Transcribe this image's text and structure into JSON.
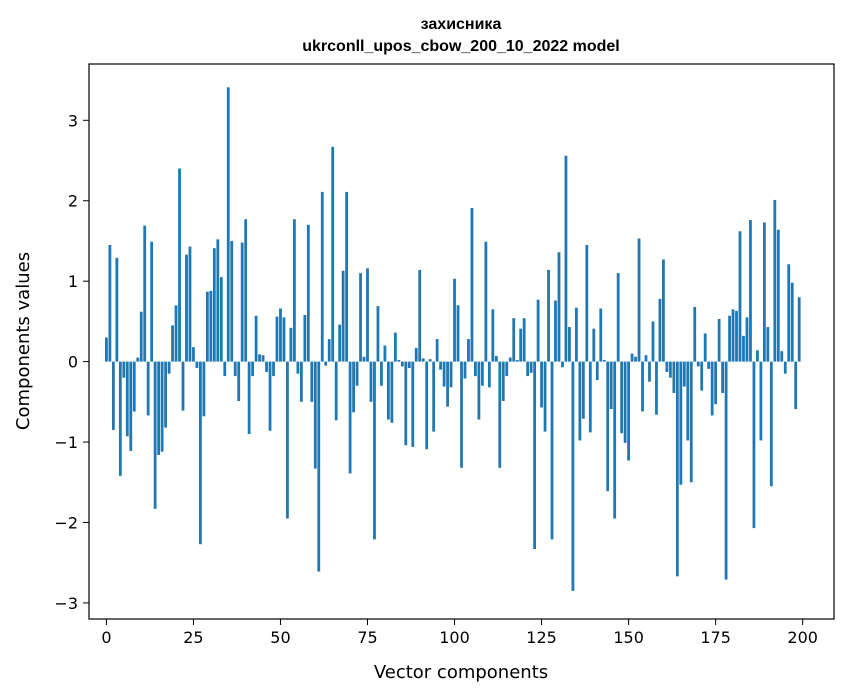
{
  "chart_data": {
    "type": "bar",
    "title_line1": "захисника",
    "title_line2": "ukrconll_upos_cbow_200_10_2022 model",
    "xlabel": "Vector components",
    "ylabel": "Components values",
    "xlim": [
      -5,
      209
    ],
    "ylim": [
      -3.2,
      3.7
    ],
    "xticks": [
      0,
      25,
      50,
      75,
      100,
      125,
      150,
      175,
      200
    ],
    "yticks": [
      -3,
      -2,
      -1,
      0,
      1,
      2,
      3
    ],
    "ytick_labels": [
      "−3",
      "−2",
      "−1",
      "0",
      "1",
      "2",
      "3"
    ],
    "bar_color": "#1f77b4",
    "grid": false,
    "x": [
      0,
      1,
      2,
      3,
      4,
      5,
      6,
      7,
      8,
      9,
      10,
      11,
      12,
      13,
      14,
      15,
      16,
      17,
      18,
      19,
      20,
      21,
      22,
      23,
      24,
      25,
      26,
      27,
      28,
      29,
      30,
      31,
      32,
      33,
      34,
      35,
      36,
      37,
      38,
      39,
      40,
      41,
      42,
      43,
      44,
      45,
      46,
      47,
      48,
      49,
      50,
      51,
      52,
      53,
      54,
      55,
      56,
      57,
      58,
      59,
      60,
      61,
      62,
      63,
      64,
      65,
      66,
      67,
      68,
      69,
      70,
      71,
      72,
      73,
      74,
      75,
      76,
      77,
      78,
      79,
      80,
      81,
      82,
      83,
      84,
      85,
      86,
      87,
      88,
      89,
      90,
      91,
      92,
      93,
      94,
      95,
      96,
      97,
      98,
      99,
      100,
      101,
      102,
      103,
      104,
      105,
      106,
      107,
      108,
      109,
      110,
      111,
      112,
      113,
      114,
      115,
      116,
      117,
      118,
      119,
      120,
      121,
      122,
      123,
      124,
      125,
      126,
      127,
      128,
      129,
      130,
      131,
      132,
      133,
      134,
      135,
      136,
      137,
      138,
      139,
      140,
      141,
      142,
      143,
      144,
      145,
      146,
      147,
      148,
      149,
      150,
      151,
      152,
      153,
      154,
      155,
      156,
      157,
      158,
      159,
      160,
      161,
      162,
      163,
      164,
      165,
      166,
      167,
      168,
      169,
      170,
      171,
      172,
      173,
      174,
      175,
      176,
      177,
      178,
      179,
      180,
      181,
      182,
      183,
      184,
      185,
      186,
      187,
      188,
      189,
      190,
      191,
      192,
      193,
      194,
      195,
      196,
      197,
      198,
      199
    ],
    "values": [
      0.3,
      1.45,
      -0.85,
      1.29,
      -1.42,
      -0.2,
      -0.93,
      -1.11,
      -0.62,
      0.05,
      0.62,
      1.69,
      -0.67,
      1.49,
      -1.83,
      -1.16,
      -1.12,
      -0.82,
      -0.15,
      0.45,
      0.7,
      2.4,
      -0.61,
      1.33,
      1.43,
      0.18,
      -0.08,
      -2.27,
      -0.68,
      0.87,
      0.88,
      1.41,
      1.52,
      1.05,
      -0.18,
      3.41,
      1.5,
      -0.18,
      -0.49,
      1.48,
      1.77,
      -0.9,
      -0.18,
      0.57,
      0.09,
      0.08,
      -0.13,
      -0.86,
      -0.18,
      0.56,
      0.66,
      0.55,
      -1.95,
      0.42,
      1.77,
      -0.15,
      -0.5,
      0.58,
      1.7,
      -0.5,
      -1.33,
      -2.61,
      2.11,
      -0.05,
      0.28,
      2.67,
      -0.73,
      0.46,
      1.13,
      2.11,
      -1.39,
      -0.63,
      -0.3,
      1.1,
      0.06,
      1.16,
      -0.5,
      -2.21,
      0.69,
      -0.3,
      0.2,
      -0.72,
      -0.76,
      0.36,
      0.02,
      -0.06,
      -1.04,
      -0.08,
      -1.06,
      0.17,
      1.14,
      0.04,
      -1.09,
      0.03,
      -0.87,
      0.28,
      -0.1,
      -0.31,
      -0.56,
      -0.32,
      1.03,
      0.7,
      -1.32,
      -0.21,
      0.28,
      1.91,
      -0.18,
      -0.72,
      -0.3,
      1.49,
      -0.32,
      0.65,
      0.07,
      -1.32,
      -0.49,
      -0.18,
      0.05,
      0.54,
      0.02,
      0.41,
      0.54,
      -0.18,
      -0.14,
      -2.33,
      0.77,
      -0.57,
      -0.87,
      1.14,
      -2.21,
      0.76,
      1.36,
      -0.07,
      2.56,
      0.43,
      -2.85,
      0.67,
      -0.98,
      -0.71,
      1.45,
      -0.88,
      0.41,
      -0.23,
      0.66,
      0.02,
      -1.61,
      -0.59,
      -1.95,
      1.1,
      -0.89,
      -1.01,
      -1.23,
      0.1,
      0.06,
      1.53,
      -0.62,
      0.08,
      -0.25,
      0.5,
      -0.66,
      0.78,
      1.27,
      -0.13,
      -0.2,
      -0.39,
      -2.67,
      -1.53,
      -0.31,
      -0.98,
      -1.5,
      0.68,
      -0.06,
      -0.36,
      0.35,
      -0.09,
      -0.67,
      -0.53,
      0.53,
      -0.39,
      -2.71,
      0.57,
      0.65,
      0.63,
      1.62,
      0.32,
      0.55,
      1.76,
      -2.07,
      0.14,
      -0.98,
      1.73,
      0.43,
      -1.55,
      2.01,
      1.64,
      0.13,
      -0.15,
      1.21,
      0.98,
      -0.59,
      0.8
    ]
  }
}
